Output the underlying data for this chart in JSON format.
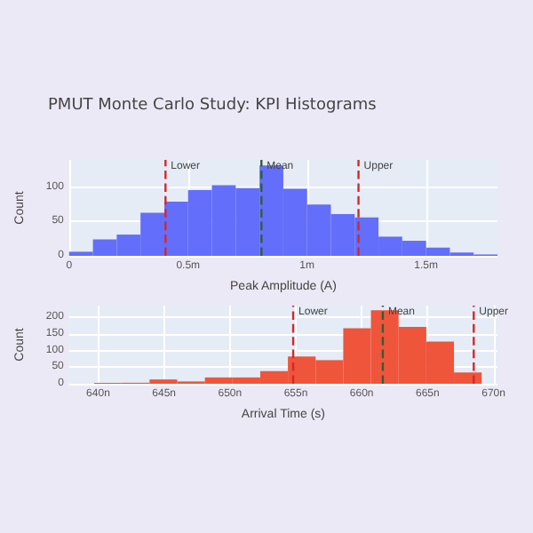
{
  "chart_data": [
    {
      "type": "histogram",
      "title": "PMUT Monte Carlo Study: KPI Histograms",
      "xlabel": "Peak Amplitude (A)",
      "ylabel": "Count",
      "color": "#636efa",
      "bins": [
        0,
        0.1,
        0.2,
        0.3,
        0.4,
        0.5,
        0.6,
        0.7,
        0.8,
        0.9,
        1,
        1.1,
        1.2,
        1.3,
        1.4,
        1.5,
        1.6,
        1.7,
        1.8
      ],
      "values": [
        6,
        24,
        31,
        63,
        79,
        96,
        103,
        99,
        132,
        98,
        75,
        61,
        56,
        28,
        22,
        12,
        5,
        2
      ],
      "xlim": [
        0,
        1.8
      ],
      "xticks": [
        0,
        {
          "value": 0.5,
          "label": "0.5m"
        },
        {
          "value": 1,
          "label": "1m"
        },
        {
          "value": 1.5,
          "label": "1.5m"
        }
      ],
      "ylim": [
        0,
        140
      ],
      "yticks": [
        0,
        50,
        100
      ],
      "grid": true,
      "ref_lines": [
        {
          "axis": "x",
          "value": 0.405,
          "label": "Lower",
          "color": "#d62728",
          "line_style": "dashed"
        },
        {
          "axis": "x",
          "value": 0.808,
          "label": "Mean",
          "color": "#2f5f3a",
          "line_style": "dashed"
        },
        {
          "axis": "x",
          "value": 1.216,
          "label": "Upper",
          "color": "#d62728",
          "line_style": "dashed"
        }
      ]
    },
    {
      "type": "histogram",
      "xlabel": "Arrival Time (s)",
      "ylabel": "Count",
      "color": "#ef553b",
      "bins": [
        639.7,
        641.8,
        643.9,
        646.0,
        648.1,
        650.2,
        652.3,
        654.4,
        656.5,
        658.6,
        660.7,
        662.8,
        664.9,
        667.0,
        669.1
      ],
      "values": [
        3,
        3,
        13,
        7,
        19,
        19,
        38,
        82,
        71,
        167,
        221,
        171,
        127,
        34
      ],
      "xlim": [
        637.8,
        670.3
      ],
      "xticks": [
        {
          "value": 640,
          "label": "640n"
        },
        {
          "value": 645,
          "label": "645n"
        },
        {
          "value": 650,
          "label": "650n"
        },
        {
          "value": 655,
          "label": "655n"
        },
        {
          "value": 660,
          "label": "660n"
        },
        {
          "value": 665,
          "label": "665n"
        },
        {
          "value": 670,
          "label": "670n"
        }
      ],
      "ylim": [
        0,
        235
      ],
      "yticks": [
        0,
        50,
        100,
        150,
        200
      ],
      "grid": true,
      "ref_lines": [
        {
          "axis": "x",
          "value": 654.8,
          "label": "Lower",
          "color": "#d62728",
          "line_style": "dashed"
        },
        {
          "axis": "x",
          "value": 661.6,
          "label": "Mean",
          "color": "#2f5f3a",
          "line_style": "dashed"
        },
        {
          "axis": "x",
          "value": 668.5,
          "label": "Upper",
          "color": "#d62728",
          "line_style": "dashed"
        }
      ]
    }
  ]
}
